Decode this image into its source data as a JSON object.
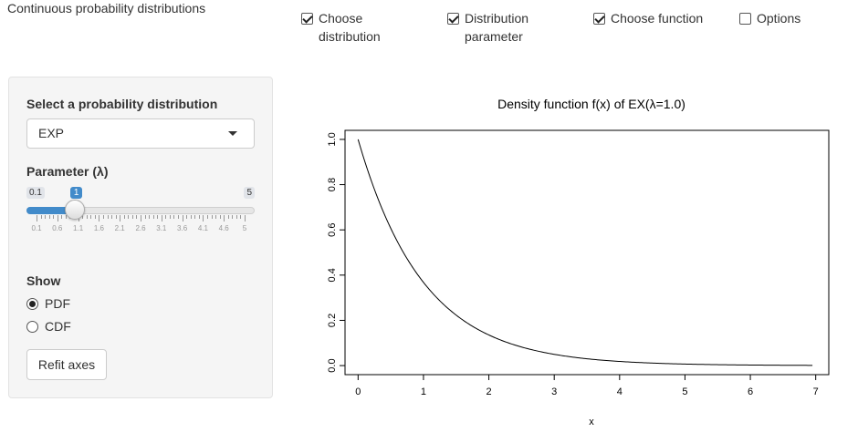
{
  "app": {
    "title": "Continuous probability distributions"
  },
  "top_controls": [
    {
      "label_line1": "Choose",
      "label_line2": "distribution",
      "checked": true
    },
    {
      "label_line1": "Distribution",
      "label_line2": "parameter",
      "checked": true
    },
    {
      "label_line1": "Choose function",
      "label_line2": "",
      "checked": true
    },
    {
      "label_line1": "Options",
      "label_line2": "",
      "checked": false
    }
  ],
  "sidebar": {
    "distribution_label": "Select a probability distribution",
    "distribution_value": "EXP",
    "parameter_label": "Parameter (λ)",
    "slider": {
      "min_label": "0.1",
      "max_label": "5",
      "value_label": "1",
      "min": 0.1,
      "max": 5,
      "value": 1,
      "tick_labels": [
        "0.1",
        "0.6",
        "1.1",
        "1.6",
        "2.1",
        "2.6",
        "3.1",
        "3.6",
        "4.1",
        "4.6",
        "5"
      ]
    },
    "show_label": "Show",
    "show_options": [
      {
        "label": "PDF",
        "checked": true
      },
      {
        "label": "CDF",
        "checked": false
      }
    ],
    "refit_button": "Refit axes"
  },
  "chart_data": {
    "type": "line",
    "title": "Density function f(x) of EX(λ=1.0)",
    "xlabel": "x",
    "ylabel": "",
    "xlim": [
      -0.2,
      7.2
    ],
    "ylim": [
      -0.04,
      1.04
    ],
    "xticks": [
      "0",
      "1",
      "2",
      "3",
      "4",
      "5",
      "6",
      "7"
    ],
    "yticks": [
      "0.0",
      "0.2",
      "0.4",
      "0.6",
      "0.8",
      "1.0"
    ],
    "grid": false,
    "series": [
      {
        "function": "exp(-x)",
        "lambda": 1.0,
        "x_range": [
          0,
          6.95
        ]
      }
    ]
  }
}
